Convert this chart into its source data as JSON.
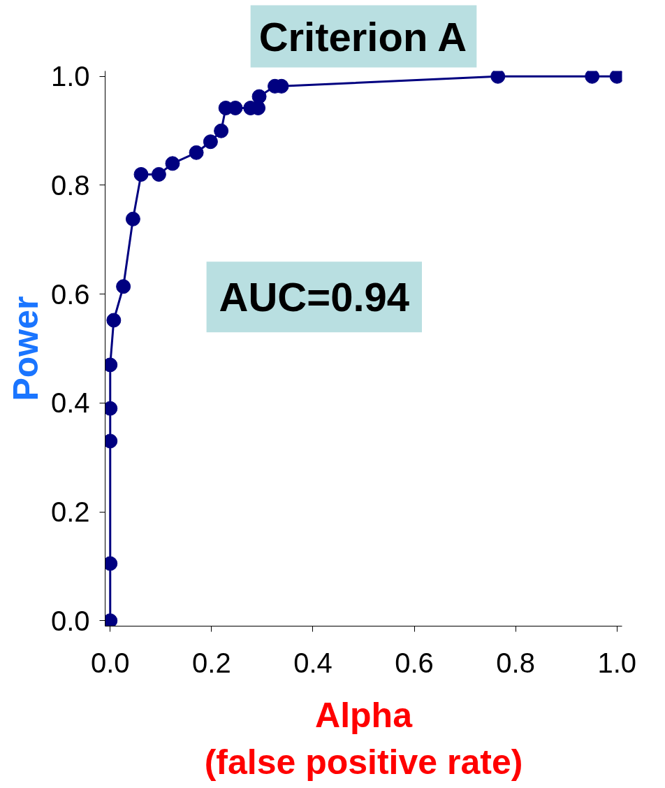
{
  "chart_data": {
    "type": "line",
    "title": "Criterion A",
    "xlabel": "Alpha\n(false positive rate)",
    "ylabel": "Power",
    "annotations": [
      "AUC=0.94"
    ],
    "x": [
      0,
      0,
      0,
      0,
      0,
      0.007,
      0.026,
      0.045,
      0.061,
      0.096,
      0.123,
      0.17,
      0.198,
      0.219,
      0.228,
      0.247,
      0.277,
      0.292,
      0.294,
      0.325,
      0.338,
      0.765,
      0.951,
      1.0
    ],
    "series": [
      {
        "color": "#000080",
        "values": [
          0,
          0.105,
          0.33,
          0.39,
          0.47,
          0.552,
          0.614,
          0.738,
          0.82,
          0.82,
          0.84,
          0.86,
          0.88,
          0.9,
          0.942,
          0.942,
          0.942,
          0.942,
          0.963,
          0.982,
          0.982,
          1.0,
          1.0,
          1.0
        ]
      }
    ],
    "xlim": [
      -0.01,
      1.01
    ],
    "ylim": [
      -0.01,
      1.01
    ],
    "xticks": [
      {
        "value": 0,
        "label": "0.0"
      },
      0.2,
      0.4,
      0.6,
      0.8,
      {
        "value": 1,
        "label": "1.0"
      }
    ],
    "yticks": [
      {
        "value": 0,
        "label": "0.0"
      },
      0.2,
      0.4,
      0.6,
      0.8,
      {
        "value": 1,
        "label": "1.0"
      }
    ],
    "grid": false,
    "marker": "circle",
    "line_style": "solid"
  }
}
